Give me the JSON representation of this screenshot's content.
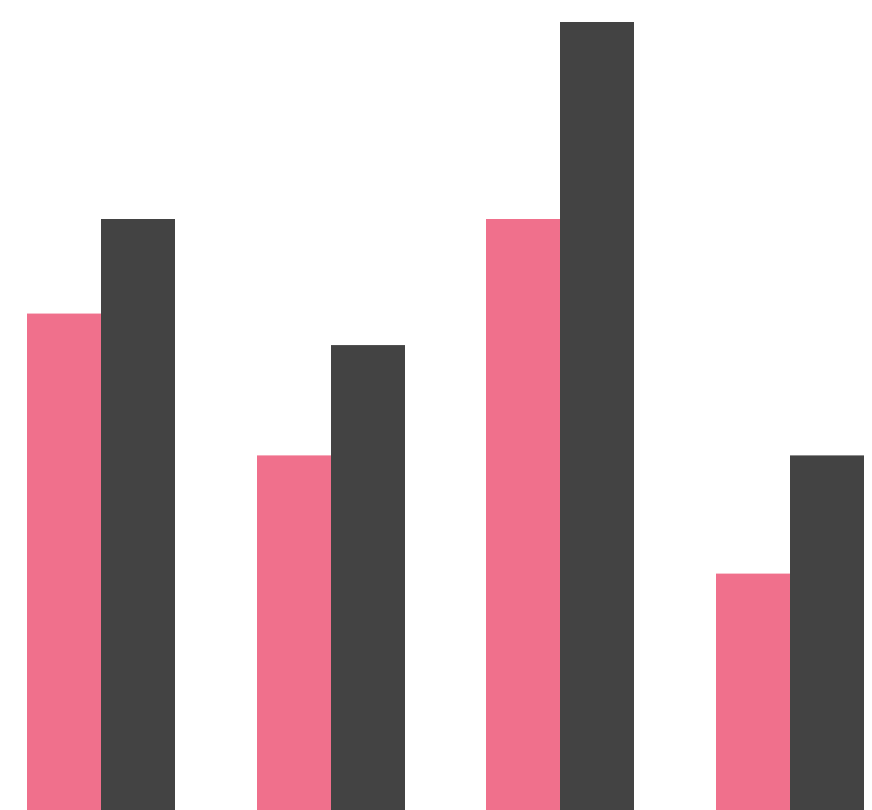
{
  "chart_data": {
    "type": "bar",
    "categories": [
      "",
      "",
      "",
      ""
    ],
    "series": [
      {
        "color": "#f0708c",
        "values": [
          63,
          45,
          75,
          30
        ]
      },
      {
        "color": "#434343",
        "values": [
          75,
          59,
          100,
          45
        ]
      }
    ],
    "ylim": [
      0,
      100
    ],
    "grid": false,
    "legend": "none"
  }
}
